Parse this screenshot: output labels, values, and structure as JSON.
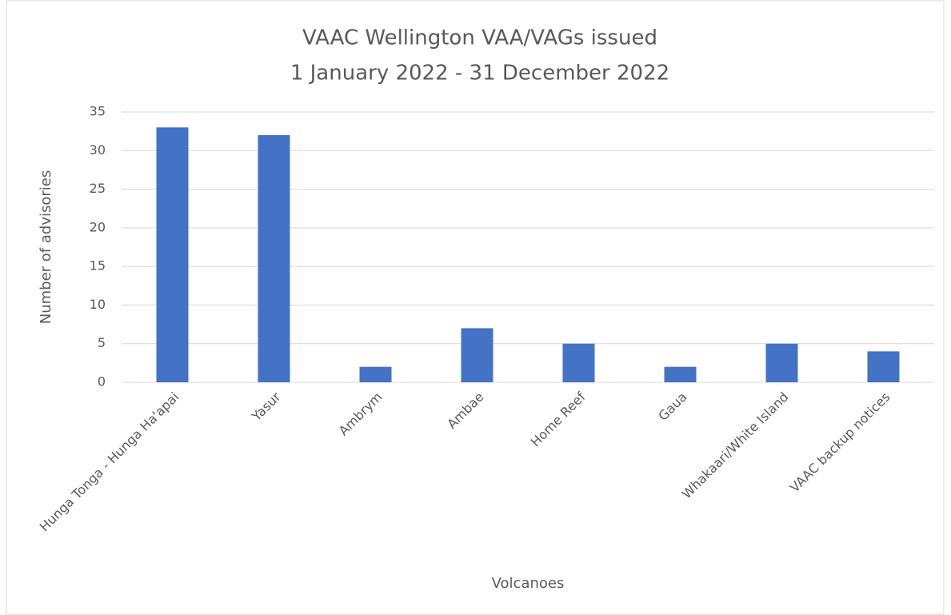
{
  "chart_data": {
    "type": "bar",
    "title": "VAAC Wellington VAA/VAGs issued",
    "subtitle": "1 January 2022 - 31 December 2022",
    "x_label": "Volcanoes",
    "y_label": "Number of advisories",
    "categories": [
      "Hunga Tonga - Hunga Ha'apai",
      "Yasur",
      "Ambrym",
      "Ambae",
      "Home Reef",
      "Gaua",
      "Whakaari/White Island",
      "VAAC backup notices"
    ],
    "values": [
      33,
      32,
      2,
      7,
      5,
      2,
      5,
      4
    ],
    "color": "#4472c4",
    "ylim": [
      0,
      35
    ],
    "yticks": [
      0,
      5,
      10,
      15,
      20,
      25,
      30,
      35
    ],
    "grid": true
  }
}
